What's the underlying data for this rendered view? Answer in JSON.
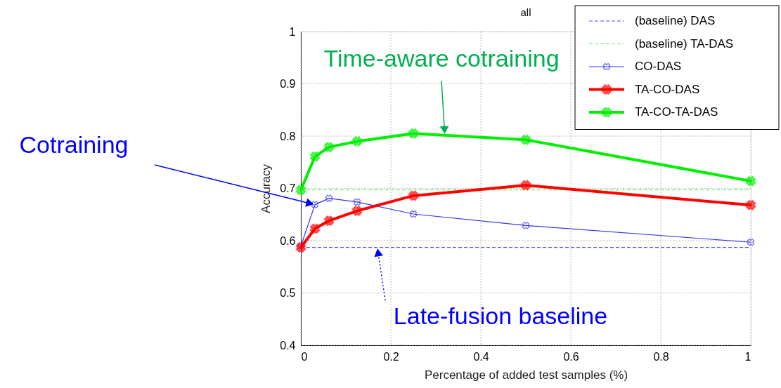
{
  "chart_data": {
    "type": "line",
    "title": "all",
    "xlabel": "Percentage of added test samples (%)",
    "ylabel": "Accuracy",
    "xlim": [
      0,
      1
    ],
    "xticks": [
      0,
      0.2,
      0.4,
      0.6,
      0.8,
      1
    ],
    "ylim": [
      0.4,
      1
    ],
    "yticks": [
      0.4,
      0.5,
      0.6,
      0.7,
      0.8,
      0.9,
      1
    ],
    "grid": true,
    "legend": "top right",
    "series": [
      {
        "name": "(baseline) DAS",
        "color": "#4f4ff5",
        "line_style": "dashed",
        "x": [
          0,
          1
        ],
        "values": [
          0.587,
          0.587
        ]
      },
      {
        "name": "(baseline) TA-DAS",
        "color": "#55ee55",
        "line_style": "dashed",
        "x": [
          0,
          1
        ],
        "values": [
          0.697,
          0.697
        ]
      },
      {
        "name": "CO-DAS",
        "color": "#3333ee",
        "line_style": "solid",
        "marker": "cross",
        "x": [
          0,
          0.03125,
          0.0625,
          0.125,
          0.25,
          0.5,
          1
        ],
        "values": [
          0.59,
          0.669,
          0.681,
          0.674,
          0.651,
          0.629,
          0.597
        ]
      },
      {
        "name": "TA-CO-DAS",
        "color": "#ff0000",
        "line_style": "solid",
        "marker": "cross",
        "x": [
          0,
          0.03125,
          0.0625,
          0.125,
          0.25,
          0.5,
          1
        ],
        "values": [
          0.587,
          0.623,
          0.638,
          0.657,
          0.686,
          0.706,
          0.668
        ]
      },
      {
        "name": "TA-CO-TA-DAS",
        "color": "#00ee00",
        "line_style": "solid",
        "marker": "cross",
        "x": [
          0,
          0.03125,
          0.0625,
          0.125,
          0.25,
          0.5,
          1
        ],
        "values": [
          0.697,
          0.761,
          0.779,
          0.79,
          0.805,
          0.793,
          0.714
        ]
      }
    ],
    "annotations": [
      {
        "text": "Cotraining",
        "x": 0.03125,
        "y": 0.669
      },
      {
        "text": "Time-aware cotraining",
        "x": 0.32,
        "y": 0.802
      },
      {
        "text": "Late-fusion baseline",
        "x": 0.17,
        "y": 0.587
      }
    ]
  }
}
